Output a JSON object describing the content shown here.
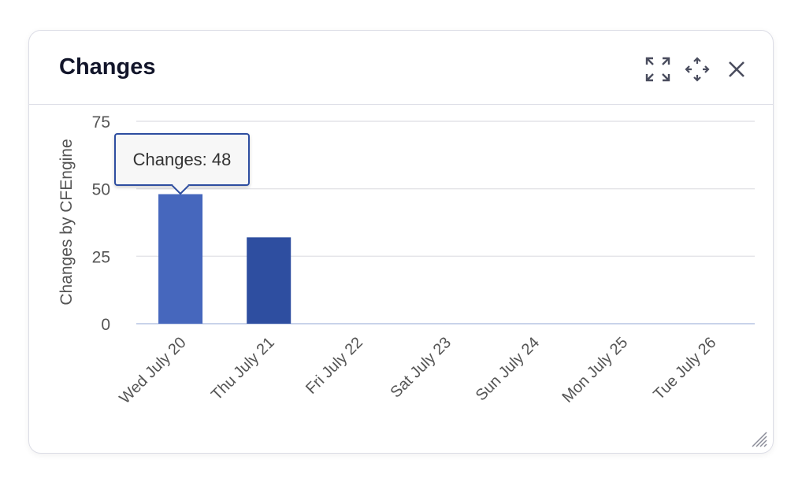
{
  "widget": {
    "title": "Changes",
    "icons": [
      "expand-icon",
      "move-icon",
      "close-icon",
      "resize-handle-icon"
    ]
  },
  "tooltip": {
    "text": "Changes: 48"
  },
  "chart_data": {
    "type": "bar",
    "categories": [
      "Wed July 20",
      "Thu July 21",
      "Fri July 22",
      "Sat July 23",
      "Sun July 24",
      "Mon July 25",
      "Tue July 26"
    ],
    "series": [
      {
        "name": "Changes",
        "values": [
          48,
          32,
          0,
          0,
          0,
          0,
          0
        ]
      }
    ],
    "ylabel": "Changes by CFEngine",
    "ylim": [
      0,
      75
    ],
    "yticks": [
      "0",
      "25",
      "50",
      "75"
    ],
    "grid": true,
    "colors": {
      "bar": "#2e4ea0",
      "bar_hover": "#4667bd"
    }
  }
}
